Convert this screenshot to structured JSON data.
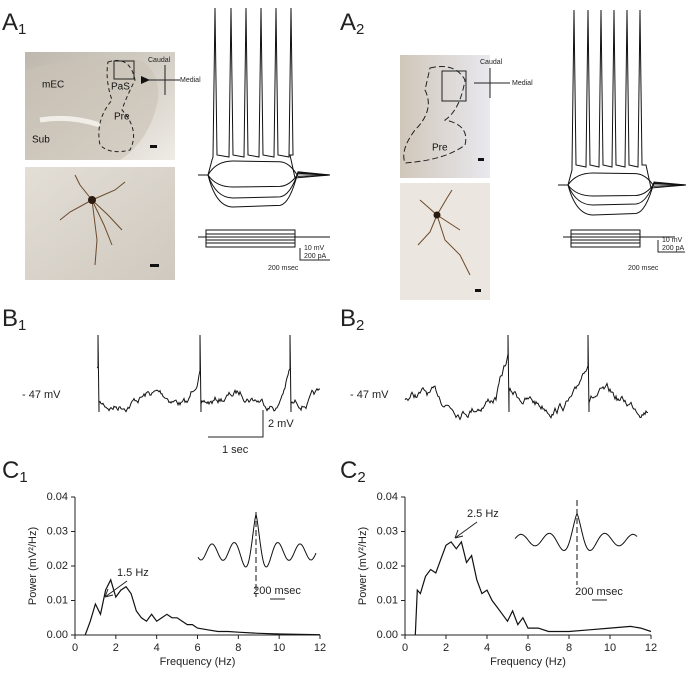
{
  "panels": [
    {
      "letter": "A",
      "index": "1"
    },
    {
      "letter": "A",
      "index": "2"
    },
    {
      "letter": "B",
      "index": "1"
    },
    {
      "letter": "B",
      "index": "2"
    },
    {
      "letter": "C",
      "index": "1"
    },
    {
      "letter": "C",
      "index": "2"
    }
  ],
  "a1": {
    "regions": [
      "mEC",
      "PaS",
      "Pre",
      "Sub"
    ],
    "orientation": [
      "Caudal",
      "Medial"
    ],
    "scale": [
      "10 mV",
      "200 pA",
      "200 msec"
    ]
  },
  "a2": {
    "regions": [
      "Pre"
    ],
    "orientation": [
      "Caudal",
      "Medial"
    ],
    "scale": [
      "10 mV",
      "200 pA",
      "200 msec"
    ]
  },
  "b1": {
    "potential": "- 47 mV",
    "scale": [
      "2 mV",
      "1 sec"
    ]
  },
  "b2": {
    "potential": "- 47 mV"
  },
  "chart_data": [
    {
      "type": "line",
      "xlabel": "Frequency (Hz)",
      "ylabel": "Power (mV²/Hz)",
      "annotation": "1.5 Hz",
      "inset_scale": "200 msec",
      "color": "#111111",
      "x": [
        0.5,
        0.75,
        1.0,
        1.25,
        1.5,
        1.75,
        2.0,
        2.25,
        2.5,
        2.75,
        3.0,
        3.25,
        3.5,
        3.75,
        4.0,
        4.25,
        4.5,
        4.75,
        5.0,
        5.25,
        5.5,
        5.75,
        6.0,
        6.5,
        7.0,
        7.5,
        8.0,
        9.0,
        10.0,
        11.0,
        12.0
      ],
      "values": [
        0,
        0.004,
        0.009,
        0.006,
        0.013,
        0.016,
        0.011,
        0.013,
        0.014,
        0.012,
        0.007,
        0.005,
        0.004,
        0.006,
        0.004,
        0.005,
        0.006,
        0.005,
        0.005,
        0.004,
        0.003,
        0.003,
        0.002,
        0.0015,
        0.001,
        0.001,
        0.0008,
        0.0005,
        0.0003,
        0.0002,
        0.0001
      ],
      "xlim": [
        0,
        12
      ],
      "ylim": [
        0,
        0.04
      ],
      "xticks": [
        0,
        2,
        4,
        6,
        8,
        10,
        12
      ],
      "yticks": [
        {
          "value": 0,
          "label": "0.00"
        },
        0.01,
        0.02,
        0.03,
        0.04
      ]
    },
    {
      "type": "line",
      "xlabel": "Frequency (Hz)",
      "ylabel": "Power (mV²/Hz)",
      "annotation": "2.5 Hz",
      "inset_scale": "200 msec",
      "color": "#111111",
      "x": [
        0.5,
        0.6,
        0.75,
        1.0,
        1.25,
        1.5,
        1.75,
        2.0,
        2.25,
        2.5,
        2.75,
        3.0,
        3.25,
        3.5,
        3.75,
        4.0,
        4.25,
        4.5,
        4.75,
        5.0,
        5.25,
        5.5,
        5.75,
        6.0,
        6.5,
        7.0,
        8.0,
        9.0,
        10.0,
        11.0,
        11.5,
        12.0
      ],
      "values": [
        0,
        0.013,
        0.012,
        0.017,
        0.019,
        0.018,
        0.022,
        0.026,
        0.027,
        0.025,
        0.027,
        0.021,
        0.023,
        0.016,
        0.012,
        0.013,
        0.01,
        0.008,
        0.006,
        0.004,
        0.007,
        0.003,
        0.005,
        0.002,
        0.002,
        0.001,
        0.001,
        0.0015,
        0.002,
        0.0025,
        0.002,
        0.001
      ],
      "xlim": [
        0,
        12
      ],
      "ylim": [
        0,
        0.04
      ],
      "xticks": [
        0,
        2,
        4,
        6,
        8,
        10,
        12
      ],
      "yticks": [
        {
          "value": 0,
          "label": "0.00"
        },
        0.01,
        0.02,
        0.03,
        0.04
      ]
    }
  ]
}
